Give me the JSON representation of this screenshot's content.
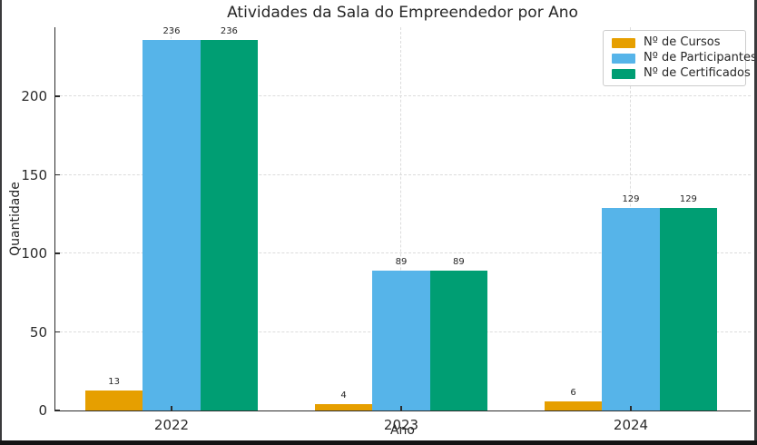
{
  "chart_data": {
    "type": "bar",
    "title": "Atividades da Sala do Empreendedor por Ano",
    "xlabel": "Ano",
    "ylabel": "Quantidade",
    "categories": [
      "2022",
      "2023",
      "2024"
    ],
    "series": [
      {
        "name": "Nº de Cursos",
        "color": "#E69F00",
        "values": [
          13,
          4,
          6
        ]
      },
      {
        "name": "Nº de Participantes",
        "color": "#56B4E9",
        "values": [
          236,
          89,
          129
        ]
      },
      {
        "name": "Nº de Certificados",
        "color": "#009E73",
        "values": [
          236,
          89,
          129
        ]
      }
    ],
    "yticks": [
      0,
      50,
      100,
      150,
      200
    ],
    "ylim": [
      0,
      244
    ],
    "grid": "dashed-both-axes",
    "bar_value_labels": true,
    "legend_position": "top-right",
    "colors": {
      "axis_spine": "#2b2b2b",
      "grid": "#dcdcdc",
      "text": "#262626",
      "legend_border": "#cccccc",
      "background": "#ffffff"
    }
  }
}
